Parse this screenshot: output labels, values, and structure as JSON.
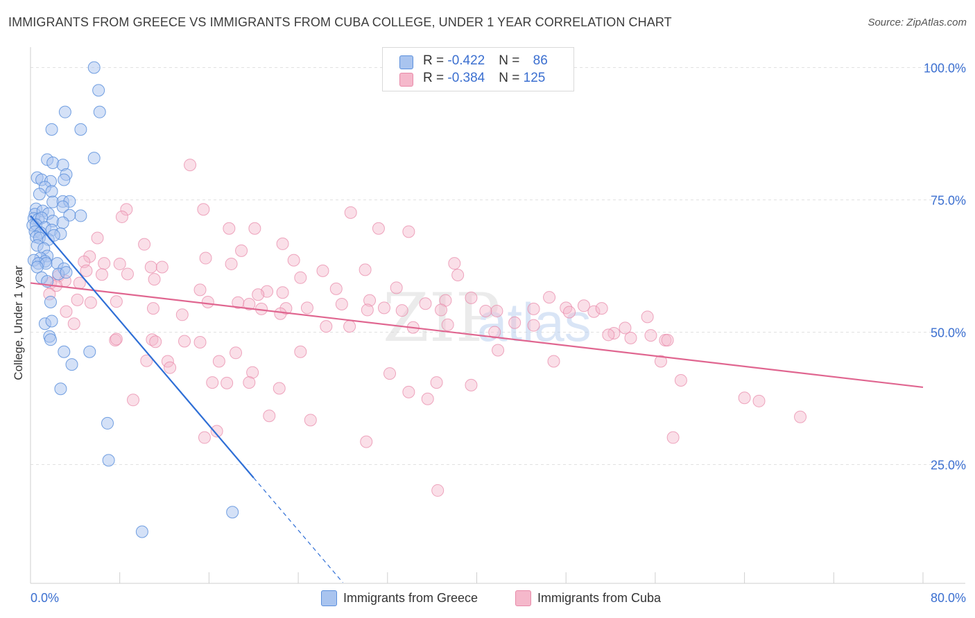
{
  "title": "IMMIGRANTS FROM GREECE VS IMMIGRANTS FROM CUBA COLLEGE, UNDER 1 YEAR CORRELATION CHART",
  "source": "Source: ZipAtlas.com",
  "watermark": {
    "zip": "ZIP",
    "atlas": "atlas"
  },
  "legend": {
    "rows": [
      {
        "r_label": "R = ",
        "r_value": "-0.422",
        "n_label": "N = ",
        "n_value": "86"
      },
      {
        "r_label": "R = ",
        "r_value": "-0.384",
        "n_label": "N = ",
        "n_value": "125"
      }
    ]
  },
  "chart_data": {
    "type": "scatter",
    "title": "IMMIGRANTS FROM GREECE VS IMMIGRANTS FROM CUBA COLLEGE, UNDER 1 YEAR CORRELATION CHART",
    "xlabel": "",
    "ylabel": "College, Under 1 year",
    "xlim": [
      0,
      80
    ],
    "ylim": [
      0,
      105
    ],
    "x_tick_labels": [
      "0.0%",
      "80.0%"
    ],
    "y_ticks": [
      25,
      50,
      75,
      100
    ],
    "y_tick_labels": [
      "25.0%",
      "50.0%",
      "75.0%",
      "100.0%"
    ],
    "grid": true,
    "legend_position": "top-center",
    "colors": {
      "greece_fill": "#a9c4ef",
      "greece_stroke": "#5b8fdc",
      "greece_line": "#2f6fd6",
      "cuba_fill": "#f5b8cb",
      "cuba_stroke": "#e88aa9",
      "cuba_line": "#e06690",
      "tick_label": "#3b6fd0",
      "grid": "#e1e1e1"
    },
    "series": [
      {
        "name": "Immigrants from Greece",
        "r": -0.422,
        "n": 86,
        "trend": {
          "x0": 0.0,
          "y0": 72.0,
          "x1": 20.0,
          "y1": 22.5,
          "dash_to_x": 28.0
        },
        "points": [
          [
            5.7,
            100.0
          ],
          [
            6.1,
            95.7
          ],
          [
            3.1,
            91.6
          ],
          [
            6.2,
            91.6
          ],
          [
            1.9,
            88.3
          ],
          [
            4.5,
            88.3
          ],
          [
            1.5,
            82.6
          ],
          [
            2.0,
            82.0
          ],
          [
            5.7,
            82.9
          ],
          [
            2.9,
            81.6
          ],
          [
            3.2,
            79.8
          ],
          [
            0.6,
            79.2
          ],
          [
            1.0,
            78.8
          ],
          [
            1.8,
            78.5
          ],
          [
            3.0,
            78.8
          ],
          [
            1.3,
            77.4
          ],
          [
            1.9,
            76.6
          ],
          [
            0.8,
            76.1
          ],
          [
            2.0,
            74.6
          ],
          [
            2.9,
            74.7
          ],
          [
            3.5,
            74.7
          ],
          [
            2.9,
            73.7
          ],
          [
            0.5,
            73.3
          ],
          [
            0.4,
            72.3
          ],
          [
            1.1,
            72.9
          ],
          [
            1.6,
            72.4
          ],
          [
            4.5,
            72.0
          ],
          [
            3.5,
            72.1
          ],
          [
            0.3,
            71.5
          ],
          [
            0.7,
            71.3
          ],
          [
            1.0,
            71.6
          ],
          [
            2.0,
            71.0
          ],
          [
            2.9,
            70.7
          ],
          [
            0.2,
            70.2
          ],
          [
            0.5,
            70.3
          ],
          [
            1.3,
            69.8
          ],
          [
            1.9,
            69.3
          ],
          [
            0.4,
            69.0
          ],
          [
            0.9,
            68.8
          ],
          [
            2.7,
            68.6
          ],
          [
            0.5,
            68.0
          ],
          [
            0.8,
            67.8
          ],
          [
            1.6,
            67.5
          ],
          [
            2.1,
            68.3
          ],
          [
            0.6,
            66.4
          ],
          [
            1.2,
            65.8
          ],
          [
            1.5,
            64.4
          ],
          [
            0.9,
            64.0
          ],
          [
            1.3,
            63.4
          ],
          [
            0.3,
            63.6
          ],
          [
            0.7,
            63.0
          ],
          [
            1.4,
            63.0
          ],
          [
            2.4,
            63.0
          ],
          [
            3.0,
            62.0
          ],
          [
            0.6,
            62.3
          ],
          [
            2.5,
            61.0
          ],
          [
            1.0,
            60.3
          ],
          [
            3.2,
            61.3
          ],
          [
            1.5,
            59.6
          ],
          [
            1.8,
            55.7
          ],
          [
            1.3,
            51.6
          ],
          [
            1.9,
            52.1
          ],
          [
            1.7,
            49.2
          ],
          [
            1.8,
            48.6
          ],
          [
            3.0,
            46.3
          ],
          [
            5.3,
            46.3
          ],
          [
            3.7,
            43.9
          ],
          [
            2.7,
            39.3
          ],
          [
            6.9,
            32.8
          ],
          [
            7.0,
            25.8
          ],
          [
            18.1,
            16.0
          ],
          [
            10.0,
            12.3
          ]
        ]
      },
      {
        "name": "Immigrants from Cuba",
        "r": -0.384,
        "n": 125,
        "trend": {
          "x0": 0.0,
          "y0": 59.3,
          "x1": 80.0,
          "y1": 39.6
        },
        "points": [
          [
            14.3,
            81.6
          ],
          [
            8.6,
            73.2
          ],
          [
            15.5,
            73.2
          ],
          [
            28.7,
            72.6
          ],
          [
            8.2,
            71.8
          ],
          [
            31.2,
            69.6
          ],
          [
            33.9,
            69.0
          ],
          [
            17.8,
            69.6
          ],
          [
            20.1,
            69.6
          ],
          [
            6.0,
            67.8
          ],
          [
            22.6,
            66.7
          ],
          [
            10.2,
            66.6
          ],
          [
            18.9,
            65.4
          ],
          [
            5.3,
            64.3
          ],
          [
            15.7,
            64.0
          ],
          [
            23.6,
            63.6
          ],
          [
            4.8,
            63.3
          ],
          [
            6.6,
            63.0
          ],
          [
            8.0,
            62.9
          ],
          [
            18.0,
            62.9
          ],
          [
            10.8,
            62.3
          ],
          [
            11.8,
            62.3
          ],
          [
            38.0,
            63.0
          ],
          [
            30.0,
            61.8
          ],
          [
            26.2,
            61.6
          ],
          [
            5.0,
            61.6
          ],
          [
            8.7,
            61.0
          ],
          [
            6.4,
            60.9
          ],
          [
            2.5,
            60.6
          ],
          [
            24.2,
            60.3
          ],
          [
            38.3,
            60.8
          ],
          [
            11.1,
            60.0
          ],
          [
            3.1,
            59.7
          ],
          [
            1.8,
            59.3
          ],
          [
            4.4,
            59.3
          ],
          [
            2.3,
            58.8
          ],
          [
            27.4,
            58.2
          ],
          [
            32.8,
            58.4
          ],
          [
            15.2,
            58.0
          ],
          [
            22.6,
            57.5
          ],
          [
            21.2,
            57.7
          ],
          [
            1.7,
            57.2
          ],
          [
            4.2,
            56.1
          ],
          [
            20.4,
            57.1
          ],
          [
            7.7,
            55.8
          ],
          [
            5.4,
            55.6
          ],
          [
            15.9,
            55.7
          ],
          [
            18.6,
            55.6
          ],
          [
            19.6,
            55.3
          ],
          [
            27.9,
            55.3
          ],
          [
            35.4,
            55.4
          ],
          [
            39.5,
            56.5
          ],
          [
            30.4,
            56.0
          ],
          [
            37.2,
            56.0
          ],
          [
            46.5,
            56.6
          ],
          [
            49.6,
            55.0
          ],
          [
            48.0,
            54.6
          ],
          [
            50.5,
            53.9
          ],
          [
            31.7,
            54.6
          ],
          [
            11.0,
            54.5
          ],
          [
            20.7,
            54.4
          ],
          [
            22.9,
            54.5
          ],
          [
            24.8,
            54.6
          ],
          [
            30.2,
            54.2
          ],
          [
            36.8,
            54.2
          ],
          [
            33.3,
            54.1
          ],
          [
            41.8,
            54.0
          ],
          [
            40.8,
            54.0
          ],
          [
            45.1,
            54.4
          ],
          [
            48.3,
            53.8
          ],
          [
            51.2,
            54.5
          ],
          [
            55.3,
            52.9
          ],
          [
            3.2,
            53.9
          ],
          [
            3.9,
            51.6
          ],
          [
            22.4,
            53.5
          ],
          [
            13.6,
            53.3
          ],
          [
            26.5,
            51.1
          ],
          [
            28.6,
            51.1
          ],
          [
            34.3,
            50.9
          ],
          [
            37.4,
            51.4
          ],
          [
            41.6,
            50.0
          ],
          [
            43.4,
            51.8
          ],
          [
            45.1,
            51.3
          ],
          [
            53.3,
            50.8
          ],
          [
            52.3,
            49.8
          ],
          [
            51.8,
            49.5
          ],
          [
            53.8,
            48.9
          ],
          [
            55.6,
            49.4
          ],
          [
            56.9,
            48.5
          ],
          [
            57.1,
            48.5
          ],
          [
            7.6,
            48.5
          ],
          [
            7.7,
            48.7
          ],
          [
            10.9,
            48.6
          ],
          [
            11.2,
            48.2
          ],
          [
            13.8,
            48.3
          ],
          [
            15.2,
            48.1
          ],
          [
            18.4,
            46.1
          ],
          [
            24.2,
            46.3
          ],
          [
            41.9,
            46.6
          ],
          [
            10.4,
            44.6
          ],
          [
            12.3,
            44.5
          ],
          [
            16.9,
            44.5
          ],
          [
            46.9,
            44.5
          ],
          [
            56.5,
            44.5
          ],
          [
            12.5,
            43.3
          ],
          [
            19.9,
            42.4
          ],
          [
            32.2,
            42.2
          ],
          [
            16.3,
            40.5
          ],
          [
            17.6,
            40.4
          ],
          [
            19.6,
            40.5
          ],
          [
            36.4,
            40.5
          ],
          [
            39.5,
            40.0
          ],
          [
            58.3,
            40.9
          ],
          [
            9.2,
            37.2
          ],
          [
            22.3,
            39.4
          ],
          [
            33.9,
            38.7
          ],
          [
            35.6,
            37.4
          ],
          [
            64.0,
            37.6
          ],
          [
            65.3,
            37.0
          ],
          [
            21.4,
            34.2
          ],
          [
            25.1,
            33.4
          ],
          [
            69.0,
            34.0
          ],
          [
            15.6,
            30.1
          ],
          [
            16.7,
            31.3
          ],
          [
            30.1,
            29.3
          ],
          [
            57.6,
            30.1
          ],
          [
            36.5,
            20.1
          ]
        ]
      }
    ]
  }
}
